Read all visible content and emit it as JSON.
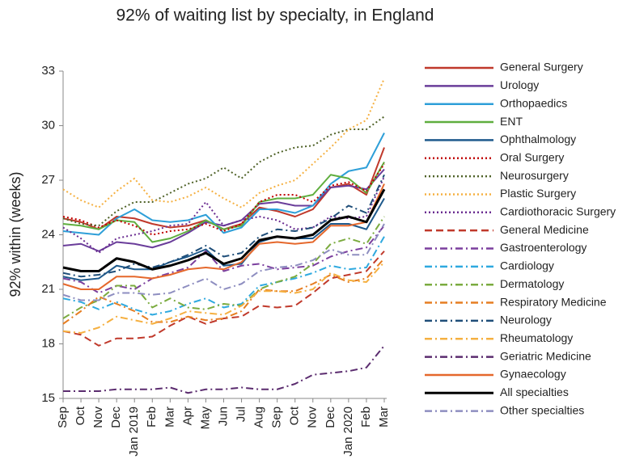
{
  "chart_data": {
    "type": "line",
    "title": "92% of waiting list by specialty, in England",
    "y_label": "92% within (weeks)",
    "categories": [
      "Sep",
      "Oct",
      "Nov",
      "Dec",
      "Jan 2019",
      "Feb",
      "Mar",
      "Apr",
      "May",
      "Jun",
      "Jul",
      "Aug",
      "Sep",
      "Oct",
      "Nov",
      "Dec",
      "Jan 2020",
      "Feb",
      "Mar"
    ],
    "ylim": [
      15,
      33
    ],
    "yticks": [
      15,
      18,
      21,
      24,
      27,
      30,
      33
    ],
    "grid": false,
    "legend": "right",
    "series": [
      {
        "name": "General Surgery",
        "color": "#c0392b",
        "dash": "solid",
        "values": [
          24.9,
          24.7,
          24.3,
          25.0,
          24.9,
          24.6,
          24.4,
          24.5,
          24.8,
          24.3,
          24.6,
          25.5,
          25.3,
          25.0,
          25.4,
          26.6,
          26.8,
          26.2,
          28.8
        ]
      },
      {
        "name": "Urology",
        "color": "#6a3d9a",
        "dash": "solid",
        "values": [
          23.4,
          23.5,
          23.1,
          23.6,
          23.5,
          23.3,
          23.6,
          24.1,
          24.7,
          24.5,
          24.8,
          25.7,
          25.8,
          25.6,
          25.6,
          26.6,
          26.7,
          26.5,
          27.6
        ]
      },
      {
        "name": "Orthopaedics",
        "color": "#2e9fd8",
        "dash": "solid",
        "values": [
          24.2,
          24.1,
          24.0,
          24.9,
          25.4,
          24.8,
          24.7,
          24.8,
          25.1,
          24.1,
          24.4,
          25.4,
          25.4,
          25.2,
          25.6,
          26.8,
          27.5,
          27.7,
          29.6
        ]
      },
      {
        "name": "ENT",
        "color": "#5fae3e",
        "dash": "solid",
        "values": [
          24.6,
          24.5,
          24.3,
          24.8,
          24.7,
          23.6,
          23.8,
          24.2,
          24.8,
          24.3,
          24.5,
          25.8,
          26.0,
          26.0,
          26.2,
          27.3,
          27.1,
          26.3,
          28.0
        ]
      },
      {
        "name": "Ophthalmology",
        "color": "#1f5a8c",
        "dash": "solid",
        "values": [
          21.7,
          21.5,
          21.6,
          22.3,
          22.1,
          22.1,
          22.5,
          22.8,
          23.2,
          22.3,
          22.4,
          23.6,
          23.9,
          23.8,
          23.8,
          24.6,
          24.6,
          24.3,
          26.0
        ]
      },
      {
        "name": "Oral Surgery",
        "color": "#c00000",
        "dash": "dot",
        "values": [
          25.0,
          24.8,
          24.4,
          24.8,
          24.5,
          24.0,
          24.2,
          24.3,
          24.6,
          24.2,
          24.6,
          25.8,
          26.2,
          26.2,
          25.8,
          26.7,
          26.9,
          26.4,
          27.9
        ]
      },
      {
        "name": "Neurosurgery",
        "color": "#4f6228",
        "dash": "dot",
        "values": [
          24.9,
          24.6,
          24.5,
          25.3,
          25.8,
          25.8,
          26.3,
          26.8,
          27.1,
          27.7,
          27.1,
          28.0,
          28.5,
          28.8,
          28.9,
          29.5,
          29.8,
          29.8,
          30.5
        ]
      },
      {
        "name": "Plastic Surgery",
        "color": "#f5b041",
        "dash": "dot",
        "values": [
          26.5,
          25.9,
          25.5,
          26.4,
          27.1,
          25.9,
          25.8,
          26.1,
          26.6,
          26.0,
          25.5,
          26.3,
          26.7,
          27.0,
          27.9,
          28.8,
          29.8,
          30.3,
          32.6
        ]
      },
      {
        "name": "Cardiothoracic Surgery",
        "color": "#6a2c91",
        "dash": "dot",
        "values": [
          24.4,
          23.8,
          23.0,
          23.8,
          24.0,
          24.2,
          24.5,
          24.6,
          25.8,
          24.5,
          24.8,
          25.0,
          24.8,
          24.3,
          24.4,
          25.0,
          24.9,
          25.0,
          27.2
        ]
      },
      {
        "name": "General Medicine",
        "color": "#c0392b",
        "dash": "dash",
        "values": [
          18.7,
          18.5,
          17.9,
          18.3,
          18.3,
          18.4,
          19.0,
          19.5,
          19.1,
          19.4,
          19.5,
          20.1,
          20.0,
          20.1,
          20.8,
          21.6,
          21.8,
          22.0,
          23.1
        ]
      },
      {
        "name": "Gastroenterology",
        "color": "#7b3f9e",
        "dash": "dash-dot",
        "values": [
          21.6,
          21.4,
          20.8,
          21.2,
          21.0,
          21.6,
          21.9,
          22.2,
          23.1,
          22.0,
          22.3,
          22.4,
          22.1,
          22.2,
          22.3,
          22.8,
          23.1,
          23.3,
          24.5
        ]
      },
      {
        "name": "Cardiology",
        "color": "#2ea9df",
        "dash": "dash-dot",
        "values": [
          20.5,
          20.3,
          19.9,
          20.3,
          19.9,
          19.6,
          19.8,
          20.2,
          20.5,
          20.0,
          20.2,
          21.2,
          21.4,
          21.6,
          21.9,
          22.3,
          22.1,
          22.2,
          23.9
        ]
      },
      {
        "name": "Dermatology",
        "color": "#7bab3f",
        "dash": "dash-dot",
        "values": [
          19.4,
          20.0,
          20.4,
          21.2,
          21.2,
          20.0,
          20.5,
          20.0,
          19.9,
          20.2,
          20.1,
          21.0,
          21.4,
          21.7,
          22.4,
          23.5,
          23.8,
          23.5,
          25.0
        ]
      },
      {
        "name": "Respiratory Medicine",
        "color": "#e67e22",
        "dash": "dash-dot",
        "values": [
          19.1,
          19.8,
          20.6,
          20.2,
          19.8,
          19.2,
          19.2,
          19.5,
          19.3,
          19.4,
          19.8,
          21.0,
          20.9,
          20.9,
          21.3,
          21.8,
          21.4,
          21.6,
          22.7
        ]
      },
      {
        "name": "Neurology",
        "color": "#1f4e79",
        "dash": "dash-dot",
        "values": [
          21.9,
          21.7,
          21.8,
          22.0,
          22.4,
          22.2,
          22.5,
          22.9,
          23.4,
          22.8,
          23.0,
          23.9,
          24.3,
          24.2,
          24.4,
          24.9,
          25.6,
          25.2,
          27.3
        ]
      },
      {
        "name": "Rheumatology",
        "color": "#f5b041",
        "dash": "dash-dot",
        "values": [
          18.7,
          18.6,
          18.9,
          19.5,
          19.3,
          19.1,
          19.4,
          19.8,
          19.7,
          19.6,
          20.1,
          20.9,
          20.9,
          20.8,
          21.0,
          21.9,
          21.5,
          21.4,
          22.5
        ]
      },
      {
        "name": "Geriatric Medicine",
        "color": "#5b2c6f",
        "dash": "dash-dot",
        "values": [
          15.4,
          15.4,
          15.4,
          15.5,
          15.5,
          15.5,
          15.6,
          15.3,
          15.5,
          15.5,
          15.6,
          15.5,
          15.5,
          15.8,
          16.3,
          16.4,
          16.5,
          16.7,
          17.9
        ]
      },
      {
        "name": "Gynaecology",
        "color": "#e5682c",
        "dash": "solid",
        "values": [
          21.3,
          21.0,
          21.0,
          21.7,
          21.7,
          21.6,
          21.8,
          22.1,
          22.2,
          22.1,
          22.5,
          23.5,
          23.6,
          23.5,
          23.6,
          24.5,
          24.5,
          24.7,
          26.8
        ]
      },
      {
        "name": "All specialties",
        "color": "#000000",
        "dash": "solid",
        "width": 3,
        "values": [
          22.2,
          22.0,
          22.0,
          22.7,
          22.5,
          22.1,
          22.3,
          22.6,
          23.0,
          22.4,
          22.7,
          23.7,
          23.9,
          23.8,
          24.0,
          24.8,
          25.0,
          24.7,
          26.5
        ]
      },
      {
        "name": "Other specialties",
        "color": "#8e8ec0",
        "dash": "dash-dot",
        "values": [
          20.7,
          20.4,
          20.4,
          20.8,
          20.8,
          20.7,
          20.8,
          21.2,
          21.6,
          21.0,
          21.3,
          22.0,
          22.2,
          22.3,
          22.6,
          23.2,
          22.9,
          22.9,
          24.6
        ]
      }
    ]
  }
}
